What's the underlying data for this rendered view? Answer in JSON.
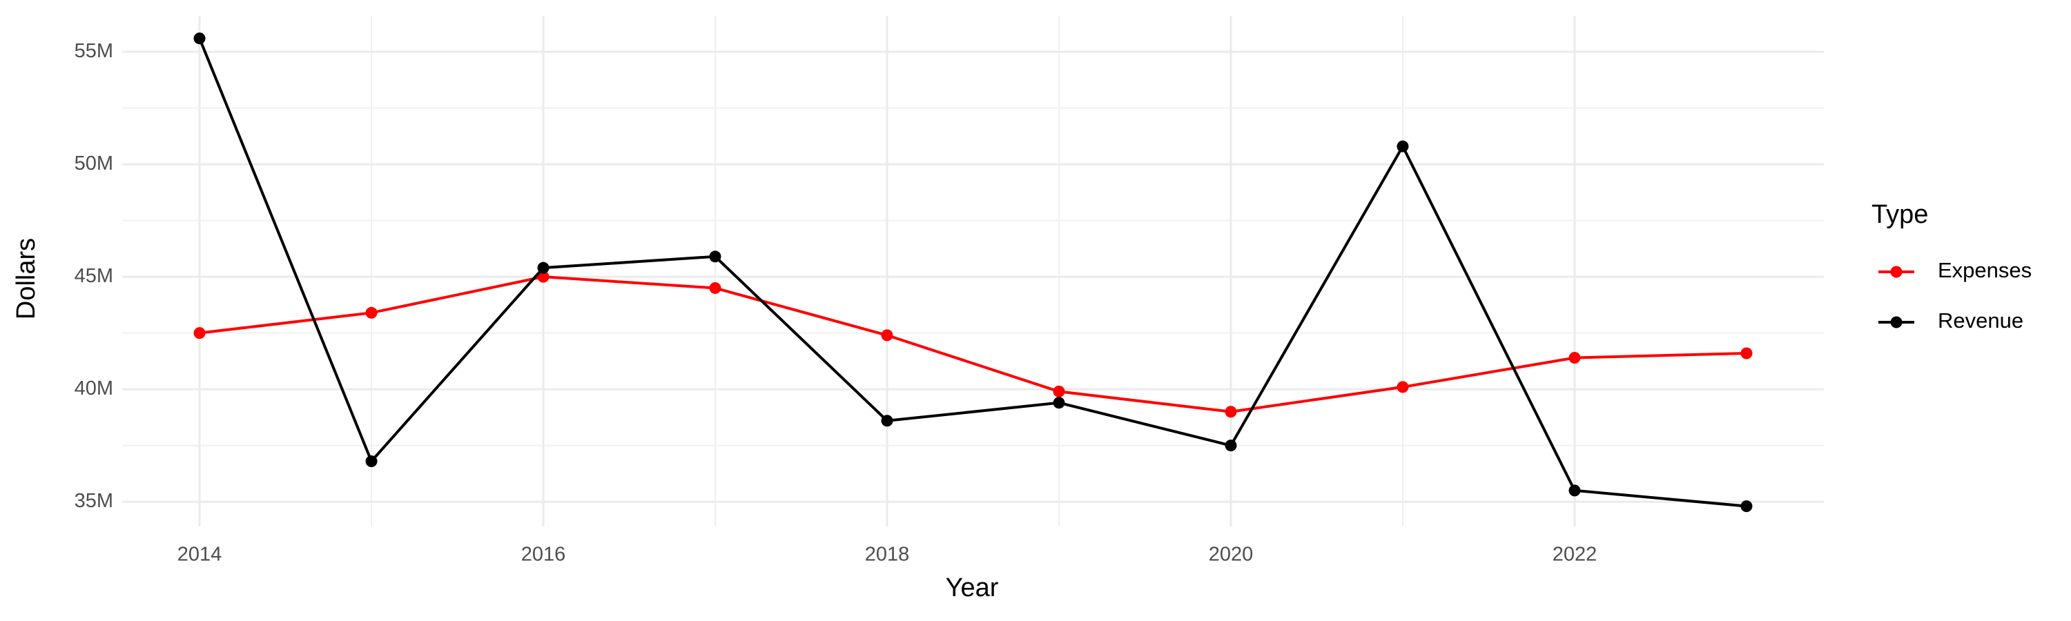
{
  "chart_data": {
    "type": "line",
    "x_label": "Year",
    "y_label": "Dollars",
    "legend_title": "Type",
    "legend_position": "right",
    "grid": true,
    "x": [
      2014,
      2015,
      2016,
      2017,
      2018,
      2019,
      2020,
      2021,
      2022,
      2023
    ],
    "series": [
      {
        "name": "Expenses",
        "color": "#ff0000",
        "values": [
          42500000,
          43400000,
          45000000,
          44500000,
          42400000,
          39900000,
          39000000,
          40100000,
          41400000,
          41600000
        ]
      },
      {
        "name": "Revenue",
        "color": "#000000",
        "values": [
          55600000,
          36800000,
          45400000,
          45900000,
          38600000,
          39400000,
          37500000,
          50800000,
          35500000,
          34800000
        ]
      }
    ],
    "xlim": [
      2013.55,
      2023.45
    ],
    "xticks": [
      2014,
      2016,
      2018,
      2020,
      2022
    ],
    "ylim": [
      33900000,
      56600000
    ],
    "yticks": [
      {
        "value": 35000000,
        "label": "35M"
      },
      {
        "value": 40000000,
        "label": "40M"
      },
      {
        "value": 45000000,
        "label": "45M"
      },
      {
        "value": 50000000,
        "label": "50M"
      },
      {
        "value": 55000000,
        "label": "55M"
      }
    ]
  }
}
